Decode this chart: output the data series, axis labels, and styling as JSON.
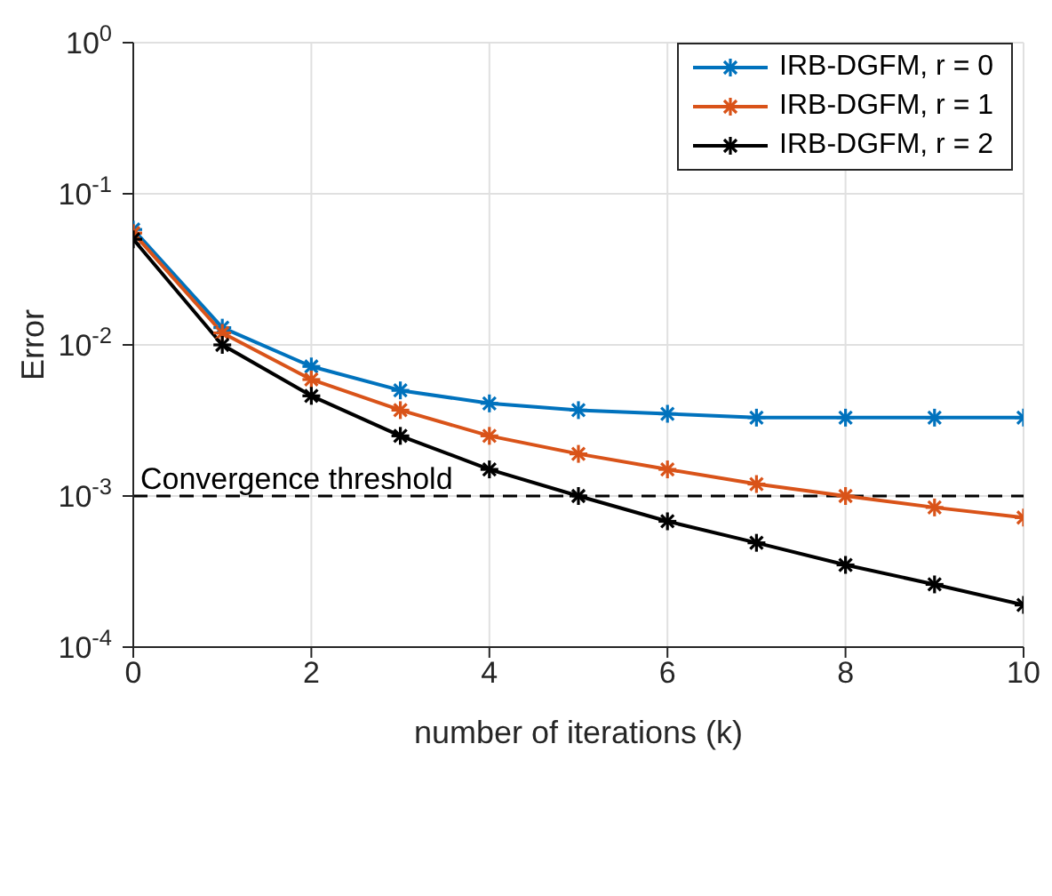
{
  "chart_data": {
    "type": "line",
    "xlabel": "number of iterations (k)",
    "ylabel": "Error",
    "x": [
      0,
      1,
      2,
      3,
      4,
      5,
      6,
      7,
      8,
      9,
      10
    ],
    "series": [
      {
        "name": "IRB-DGFM, r = 0",
        "color": "#0072bd",
        "values": [
          0.058,
          0.013,
          0.0072,
          0.005,
          0.0041,
          0.0037,
          0.0035,
          0.0033,
          0.0033,
          0.0033,
          0.0033
        ]
      },
      {
        "name": "IRB-DGFM, r = 1",
        "color": "#d95319",
        "values": [
          0.055,
          0.012,
          0.0059,
          0.0037,
          0.0025,
          0.0019,
          0.0015,
          0.0012,
          0.001,
          0.00084,
          0.00072
        ]
      },
      {
        "name": "IRB-DGFM, r = 2",
        "color": "#000000",
        "values": [
          0.05,
          0.01,
          0.0046,
          0.0025,
          0.0015,
          0.001,
          0.00068,
          0.00049,
          0.00035,
          0.00026,
          0.00019
        ]
      }
    ],
    "xlim": [
      0,
      10
    ],
    "xticks": [
      0,
      2,
      4,
      6,
      8,
      10
    ],
    "log": true,
    "ylim": [
      0.0001,
      1
    ],
    "yticks": [
      {
        "value": 0.0001,
        "label": "10$^{-4}$"
      },
      {
        "value": 0.001,
        "label": "10$^{-3}$"
      },
      {
        "value": 0.01,
        "label": "10$^{-2}$"
      },
      {
        "value": 0.1,
        "label": "10$^{-1}$"
      },
      {
        "value": 1,
        "label": "10$^{0}$"
      }
    ],
    "ref_lines": [
      {
        "axis": "y",
        "value": 0.001,
        "label": "Convergence threshold",
        "color": "#000000",
        "line_style": "dashed"
      }
    ],
    "grid": true,
    "legend": "top right",
    "marker": "cross",
    "line_style": "solid"
  }
}
